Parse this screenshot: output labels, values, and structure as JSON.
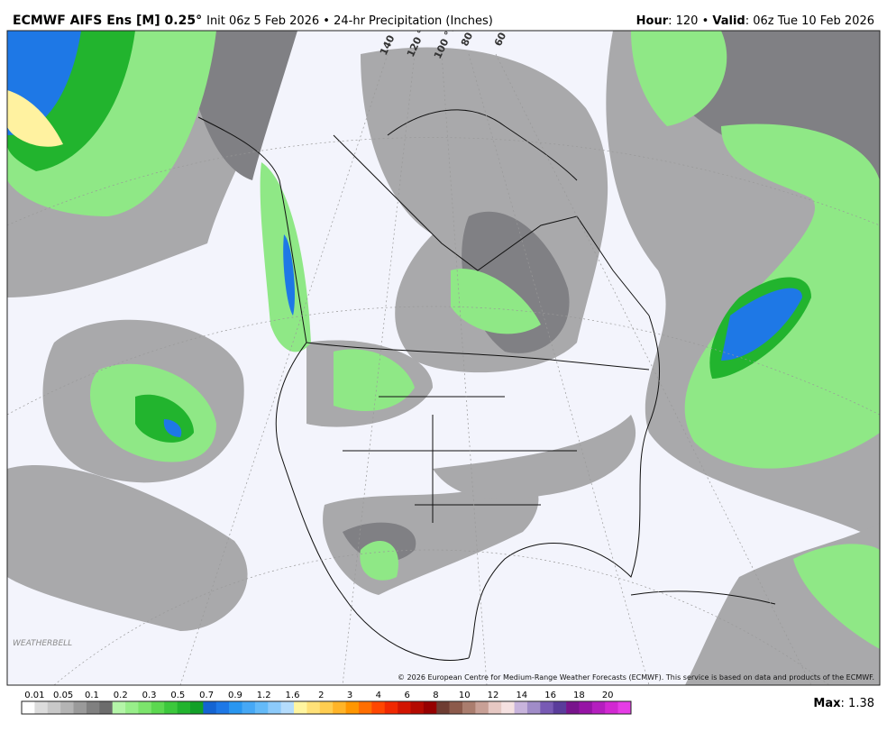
{
  "header": {
    "model": "ECMWF AIFS Ens [M] 0.25°",
    "init": "Init 06z 5 Feb 2026 • 24-hr Precipitation (Inches)",
    "hour_label": "Hour",
    "hour_text": ": 120 • ",
    "valid_label": "Valid",
    "valid_text": ": 06z Tue 10 Feb 2026"
  },
  "map": {
    "longitudes": [
      "140 °W",
      "120 °W",
      "100 °W",
      "80 °W",
      "60 °W"
    ],
    "copyright": "© 2026 European Centre for Medium-Range Weather Forecasts (ECMWF). This service is based on data and products of the ECMWF.",
    "logo": "WEATHERBELL"
  },
  "legend": {
    "levels": [
      "0.01",
      "0.05",
      "0.1",
      "0.2",
      "0.3",
      "0.5",
      "0.7",
      "0.9",
      "1.2",
      "1.6",
      "2",
      "3",
      "4",
      "6",
      "8",
      "10",
      "12",
      "14",
      "16",
      "18",
      "20"
    ],
    "colors": [
      "#ffffff",
      "#dcdcdc",
      "#c8c8c8",
      "#b4b4b4",
      "#9a9a9a",
      "#808080",
      "#6c6c6c",
      "#b4f5a8",
      "#98ee8a",
      "#7ce46c",
      "#5cd850",
      "#3cc83c",
      "#22b42e",
      "#12a028",
      "#1464d2",
      "#1e78e6",
      "#2896f0",
      "#46a8f5",
      "#64baf8",
      "#8ccafa",
      "#b4dcfc",
      "#fff5a0",
      "#ffe178",
      "#ffcd50",
      "#ffb428",
      "#ff9600",
      "#ff6e00",
      "#ff4600",
      "#f02800",
      "#d21400",
      "#b40a00",
      "#960000",
      "#6e3c32",
      "#8c5a4b",
      "#aa7d6e",
      "#c8a096",
      "#e6c8c3",
      "#f5e1e1",
      "#c8b4dc",
      "#a08cc8",
      "#785ab4",
      "#5a3c9b",
      "#78148c",
      "#9614a5",
      "#b41ebe",
      "#d228d2",
      "#e63ce6"
    ],
    "max_label": "Max",
    "max_text": ": 1.38"
  }
}
